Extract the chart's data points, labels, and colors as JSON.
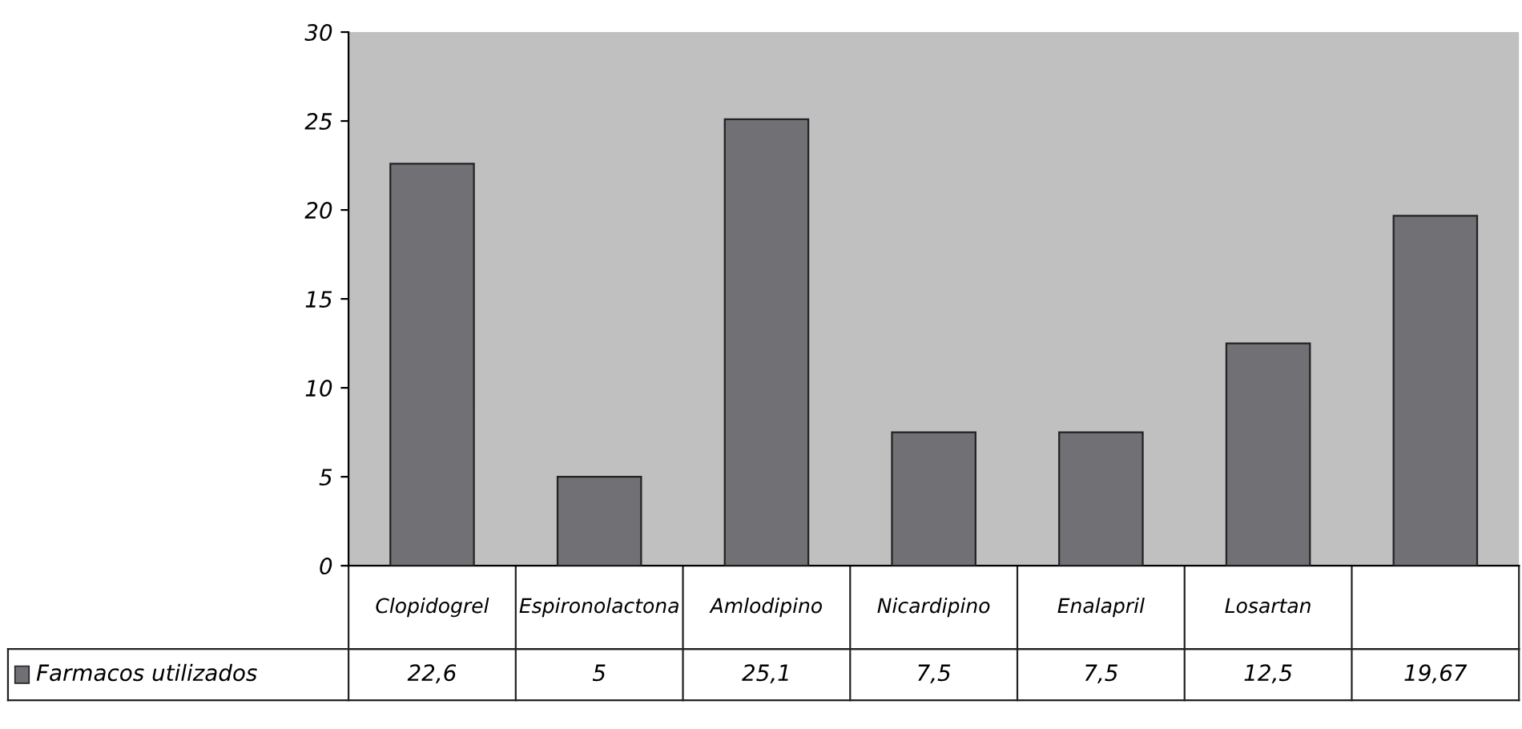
{
  "chart_data": {
    "type": "bar",
    "categories": [
      "Clopidogrel",
      "Espironolactona",
      "Amlodipino",
      "Nicardipino",
      "Enalapril",
      "Losartan",
      null
    ],
    "series": [
      {
        "name": "Farmacos utilizados",
        "color": "#707075",
        "values": [
          22.6,
          5,
          25.1,
          7.5,
          7.5,
          12.5,
          19.67
        ],
        "value_labels": [
          "22,6",
          "5",
          "25,1",
          "7,5",
          "7,5",
          "12,5",
          "19,67"
        ]
      }
    ],
    "ylim": [
      0,
      30
    ],
    "yticks": [
      0,
      5,
      10,
      15,
      20,
      25,
      30
    ],
    "grid": false,
    "legend": "bottom left"
  }
}
